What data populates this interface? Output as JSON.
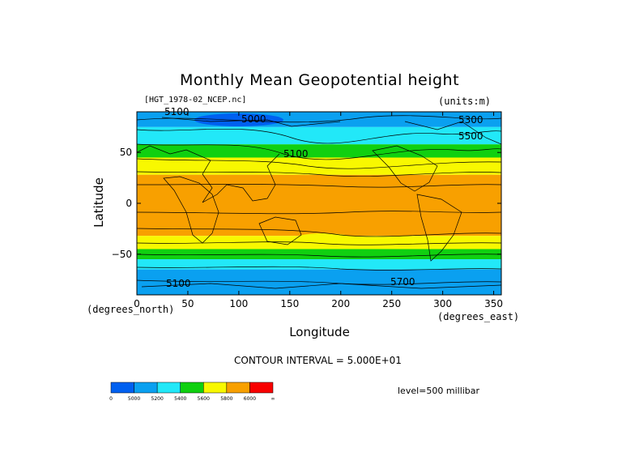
{
  "chart_data": {
    "type": "heatmap",
    "title": "Monthly Mean Geopotential height",
    "file_label": "[HGT_1978-02_NCEP.nc]",
    "units_label": "(units:m)",
    "xlabel": "Longitude",
    "ylabel": "Latitude",
    "x_unit": "(degrees_north)",
    "x_unit2": "(degrees_east)",
    "xlim": [
      0,
      357.5
    ],
    "ylim": [
      -90,
      90
    ],
    "x_ticks": [
      "0",
      "50",
      "100",
      "150",
      "200",
      "250",
      "300",
      "350"
    ],
    "y_ticks": [
      "50",
      "0",
      "−50"
    ],
    "contour_interval": "CONTOUR INTERVAL = 5.000E+01",
    "level": "level=500 millibar",
    "contour_labels": [
      "5100",
      "5000",
      "5300",
      "5500",
      "5100",
      "5100",
      "5700"
    ],
    "colorbar": {
      "colors": [
        "#0060f0",
        "#0aa0f0",
        "#22e8f8",
        "#10d010",
        "#f8f800",
        "#f8a000",
        "#f80000"
      ],
      "labels": [
        "0",
        "5000",
        "5200",
        "5400",
        "5600",
        "5800",
        "6000",
        "∞"
      ]
    },
    "bands": [
      {
        "lat_top": 90,
        "lat_bottom": 75,
        "value": "5000",
        "color": "#0aa0f0"
      },
      {
        "lat_top": 75,
        "lat_bottom": 58,
        "value": "5200",
        "color": "#22e8f8"
      },
      {
        "lat_top": 58,
        "lat_bottom": 45,
        "value": "5400",
        "color": "#10d010"
      },
      {
        "lat_top": 45,
        "lat_bottom": 28,
        "value": "5600",
        "color": "#f8f800"
      },
      {
        "lat_top": 28,
        "lat_bottom": -32,
        "value": "5800",
        "color": "#f8a000"
      },
      {
        "lat_top": -32,
        "lat_bottom": -45,
        "value": "5600",
        "color": "#f8f800"
      },
      {
        "lat_top": -45,
        "lat_bottom": -55,
        "value": "5400",
        "color": "#10d010"
      },
      {
        "lat_top": -55,
        "lat_bottom": -65,
        "value": "5200",
        "color": "#22e8f8"
      },
      {
        "lat_top": -65,
        "lat_bottom": -90,
        "value": "5000",
        "color": "#0aa0f0"
      }
    ]
  }
}
